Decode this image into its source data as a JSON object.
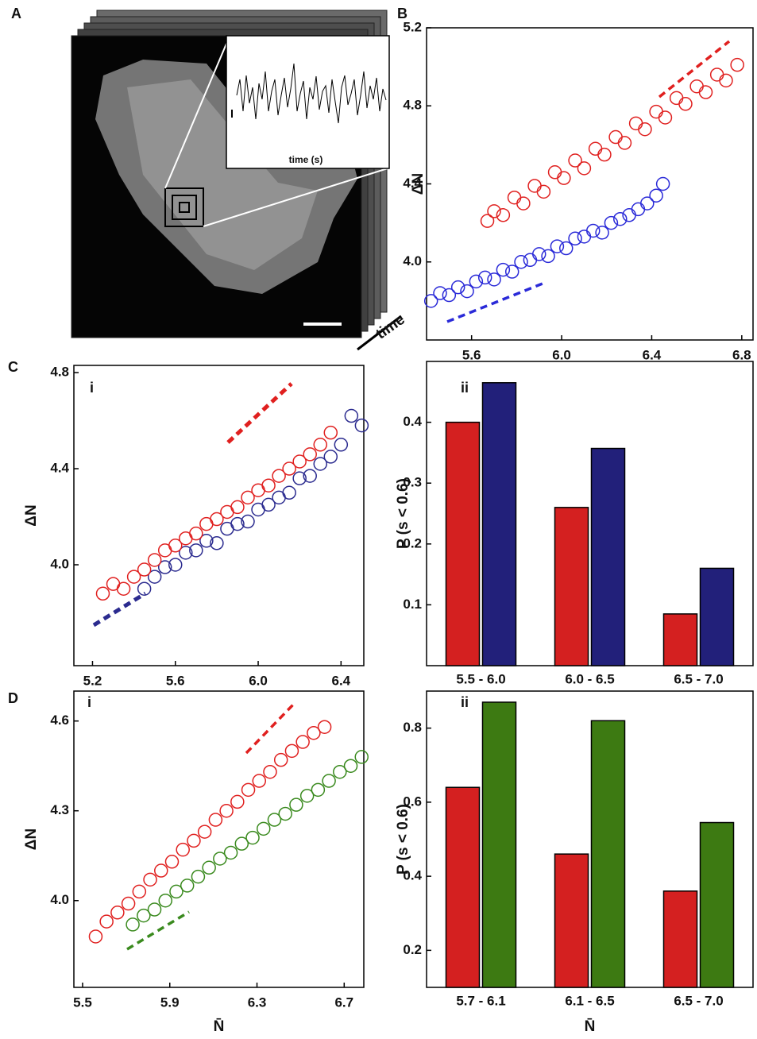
{
  "image_panel": {
    "label": "A",
    "inset_xlabel": "time (s)",
    "arrow_label": "time"
  },
  "chart_data": [
    {
      "type": "scatter",
      "panel_label": "B",
      "ylabel": "ΔN",
      "xlim": [
        5.4,
        6.85
      ],
      "xticks": [
        5.6,
        {
          "value": 6,
          "label": "6.0"
        },
        6.4,
        6.8
      ],
      "ylim": [
        3.6,
        5.2
      ],
      "yticks": [
        {
          "value": 4,
          "label": "4.0"
        },
        4.4,
        4.8,
        5.2
      ],
      "series": [
        {
          "color": "#e0201f",
          "x": [
            5.67,
            5.7,
            5.74,
            5.79,
            5.83,
            5.88,
            5.92,
            5.97,
            6.01,
            6.06,
            6.1,
            6.15,
            6.19,
            6.24,
            6.28,
            6.33,
            6.37,
            6.42,
            6.46,
            6.51,
            6.55,
            6.6,
            6.64,
            6.69,
            6.73,
            6.78
          ],
          "values": [
            4.21,
            4.26,
            4.24,
            4.33,
            4.3,
            4.39,
            4.36,
            4.46,
            4.43,
            4.52,
            4.48,
            4.58,
            4.55,
            4.64,
            4.61,
            4.71,
            4.68,
            4.77,
            4.74,
            4.84,
            4.81,
            4.9,
            4.87,
            4.96,
            4.93,
            5.01
          ]
        },
        {
          "color": "#2a2ad8",
          "x": [
            5.42,
            5.46,
            5.5,
            5.54,
            5.58,
            5.62,
            5.66,
            5.7,
            5.74,
            5.78,
            5.82,
            5.86,
            5.9,
            5.94,
            5.98,
            6.02,
            6.06,
            6.1,
            6.14,
            6.18,
            6.22,
            6.26,
            6.3,
            6.34,
            6.38,
            6.42,
            6.45
          ],
          "values": [
            3.8,
            3.84,
            3.83,
            3.87,
            3.85,
            3.9,
            3.92,
            3.91,
            3.96,
            3.95,
            4.0,
            4.01,
            4.04,
            4.03,
            4.08,
            4.07,
            4.12,
            4.13,
            4.16,
            4.15,
            4.2,
            4.22,
            4.24,
            4.27,
            4.3,
            4.34,
            4.4
          ]
        }
      ]
    },
    {
      "type": "scatter",
      "panel_label": "C",
      "sub_label": "i",
      "ylabel": "ΔN",
      "xlim": [
        5.11,
        6.51
      ],
      "xticks": [
        5.2,
        5.6,
        {
          "value": 6,
          "label": "6.0"
        },
        6.4
      ],
      "ylim": [
        3.58,
        4.83
      ],
      "yticks": [
        {
          "value": 4,
          "label": "4.0"
        },
        4.4,
        4.8
      ],
      "series": [
        {
          "color": "#2b2b8f",
          "x": [
            5.45,
            5.5,
            5.55,
            5.6,
            5.65,
            5.7,
            5.75,
            5.8,
            5.85,
            5.9,
            5.95,
            6.0,
            6.05,
            6.1,
            6.15,
            6.2,
            6.25,
            6.3,
            6.35,
            6.4,
            6.45,
            6.5
          ],
          "values": [
            3.9,
            3.95,
            3.99,
            4.0,
            4.05,
            4.06,
            4.1,
            4.09,
            4.15,
            4.17,
            4.18,
            4.23,
            4.25,
            4.28,
            4.3,
            4.36,
            4.37,
            4.42,
            4.45,
            4.5,
            4.62,
            4.58
          ]
        },
        {
          "color": "#e0201f",
          "x": [
            5.25,
            5.3,
            5.35,
            5.4,
            5.45,
            5.5,
            5.55,
            5.6,
            5.65,
            5.7,
            5.75,
            5.8,
            5.85,
            5.9,
            5.95,
            6.0,
            6.05,
            6.1,
            6.15,
            6.2,
            6.25,
            6.3,
            6.35
          ],
          "values": [
            3.88,
            3.92,
            3.9,
            3.95,
            3.98,
            4.02,
            4.06,
            4.08,
            4.11,
            4.13,
            4.17,
            4.19,
            4.22,
            4.24,
            4.28,
            4.31,
            4.33,
            4.37,
            4.4,
            4.43,
            4.46,
            4.5,
            4.55
          ]
        }
      ]
    },
    {
      "type": "bar",
      "sub_label": "ii",
      "ylabel": "P (s < 0.6)",
      "categories": [
        "5.5 - 6.0",
        "6.0 - 6.5",
        "6.5 - 7.0"
      ],
      "ylim": [
        0,
        0.5
      ],
      "yticks": [
        0.1,
        0.2,
        0.3,
        0.4
      ],
      "series": [
        {
          "color": "#d42020",
          "values": [
            0.4,
            0.26,
            0.085
          ]
        },
        {
          "color": "#22207a",
          "values": [
            0.465,
            0.357,
            0.16
          ]
        }
      ]
    },
    {
      "type": "scatter",
      "panel_label": "D",
      "sub_label": "i",
      "ylabel": "ΔN",
      "xlabel": "N̄",
      "xlim": [
        5.46,
        6.79
      ],
      "xticks": [
        5.5,
        5.9,
        6.3,
        6.7
      ],
      "ylim": [
        3.71,
        4.7
      ],
      "yticks": [
        {
          "value": 4,
          "label": "4.0"
        },
        4.3,
        4.6
      ],
      "series": [
        {
          "color": "#e0201f",
          "x": [
            5.56,
            5.61,
            5.66,
            5.71,
            5.76,
            5.81,
            5.86,
            5.91,
            5.96,
            6.01,
            6.06,
            6.11,
            6.16,
            6.21,
            6.26,
            6.31,
            6.36,
            6.41,
            6.46,
            6.51,
            6.56,
            6.61
          ],
          "values": [
            3.88,
            3.93,
            3.96,
            3.99,
            4.03,
            4.07,
            4.1,
            4.13,
            4.17,
            4.2,
            4.23,
            4.27,
            4.3,
            4.33,
            4.37,
            4.4,
            4.43,
            4.47,
            4.5,
            4.53,
            4.56,
            4.58
          ]
        },
        {
          "color": "#3a8a1e",
          "x": [
            5.73,
            5.78,
            5.83,
            5.88,
            5.93,
            5.98,
            6.03,
            6.08,
            6.13,
            6.18,
            6.23,
            6.28,
            6.33,
            6.38,
            6.43,
            6.48,
            6.53,
            6.58,
            6.63,
            6.68,
            6.73,
            6.78
          ],
          "values": [
            3.92,
            3.95,
            3.97,
            4.0,
            4.03,
            4.05,
            4.08,
            4.11,
            4.14,
            4.16,
            4.19,
            4.21,
            4.24,
            4.27,
            4.29,
            4.32,
            4.35,
            4.37,
            4.4,
            4.43,
            4.45,
            4.48
          ]
        }
      ]
    },
    {
      "type": "bar",
      "sub_label": "ii",
      "ylabel": "P (s < 0.6)",
      "xlabel": "N̄",
      "categories": [
        "5.7 - 6.1",
        "6.1 - 6.5",
        "6.5 - 7.0"
      ],
      "ylim": [
        0.1,
        0.9
      ],
      "yticks": [
        0.2,
        0.4,
        0.6,
        0.8
      ],
      "series": [
        {
          "color": "#d42020",
          "values": [
            0.64,
            0.46,
            0.36
          ]
        },
        {
          "color": "#3d7a12",
          "values": [
            0.87,
            0.82,
            0.545
          ]
        }
      ]
    }
  ]
}
